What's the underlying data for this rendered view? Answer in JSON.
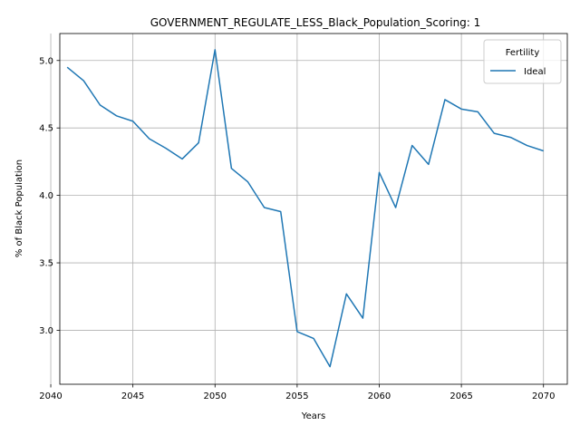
{
  "chart_data": {
    "type": "line",
    "title": "GOVERNMENT_REGULATE_LESS_Black_Population_Scoring: 1",
    "xlabel": "Years",
    "ylabel": "% of Black Population",
    "xlim": [
      2040.55,
      2071.45
    ],
    "ylim": [
      2.6,
      5.2
    ],
    "xticks": [
      2040,
      2045,
      2050,
      2055,
      2060,
      2065,
      2070
    ],
    "xtick_labels": [
      "2040",
      "2045",
      "2050",
      "2055",
      "2060",
      "2065",
      "2070"
    ],
    "yticks": [
      3.0,
      3.5,
      4.0,
      4.5,
      5.0
    ],
    "ytick_labels": [
      "3.0",
      "3.5",
      "4.0",
      "4.5",
      "5.0"
    ],
    "grid": true,
    "legend": {
      "title": "Fertility",
      "placement": "top-right"
    },
    "x": [
      2041,
      2042,
      2043,
      2044,
      2045,
      2046,
      2047,
      2048,
      2049,
      2050,
      2051,
      2052,
      2053,
      2054,
      2055,
      2056,
      2057,
      2058,
      2059,
      2060,
      2061,
      2062,
      2063,
      2064,
      2065,
      2066,
      2067,
      2068,
      2069,
      2070
    ],
    "series": [
      {
        "name": "Ideal",
        "color": "#1f77b4",
        "values": [
          4.95,
          4.85,
          4.67,
          4.59,
          4.55,
          4.42,
          4.35,
          4.27,
          4.39,
          5.08,
          4.2,
          4.1,
          3.91,
          3.88,
          2.99,
          2.94,
          2.73,
          3.27,
          3.09,
          4.17,
          3.91,
          4.37,
          4.23,
          4.71,
          4.64,
          4.62,
          4.46,
          4.43,
          4.37,
          4.33
        ]
      }
    ]
  }
}
